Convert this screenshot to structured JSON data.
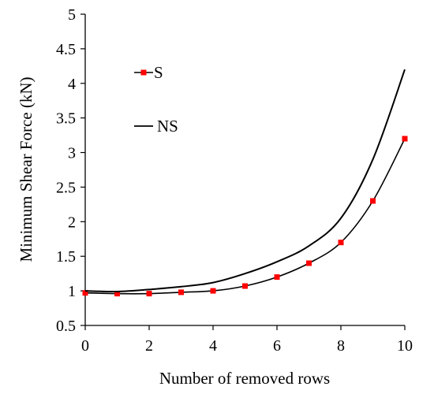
{
  "chart_data": {
    "type": "line",
    "xlabel": "Number of removed rows",
    "ylabel": "Minimum Shear Force (kN)",
    "xlim": [
      0,
      10
    ],
    "ylim": [
      0.5,
      5
    ],
    "xticks": [
      "0",
      "2",
      "4",
      "6",
      "8",
      "10"
    ],
    "yticks": [
      "0.5",
      "1",
      "1.5",
      "2",
      "2.5",
      "3",
      "3.5",
      "4",
      "4.5",
      "5"
    ],
    "grid": false,
    "legend_position": "top-left inside",
    "series": [
      {
        "name": "S",
        "color": "#ff0000",
        "line_color": "#000000",
        "marker": "square",
        "x": [
          0,
          1,
          2,
          3,
          4,
          5,
          6,
          7,
          8,
          9,
          10
        ],
        "y": [
          0.97,
          0.96,
          0.96,
          0.98,
          1.0,
          1.07,
          1.2,
          1.4,
          1.7,
          2.3,
          3.2
        ]
      },
      {
        "name": "NS",
        "color": "#000000",
        "marker": "none",
        "x": [
          0,
          1,
          2,
          3,
          4,
          5,
          6,
          7,
          8,
          9,
          10
        ],
        "y": [
          1.0,
          0.99,
          1.02,
          1.06,
          1.12,
          1.25,
          1.42,
          1.65,
          2.05,
          2.9,
          4.2
        ]
      }
    ]
  }
}
